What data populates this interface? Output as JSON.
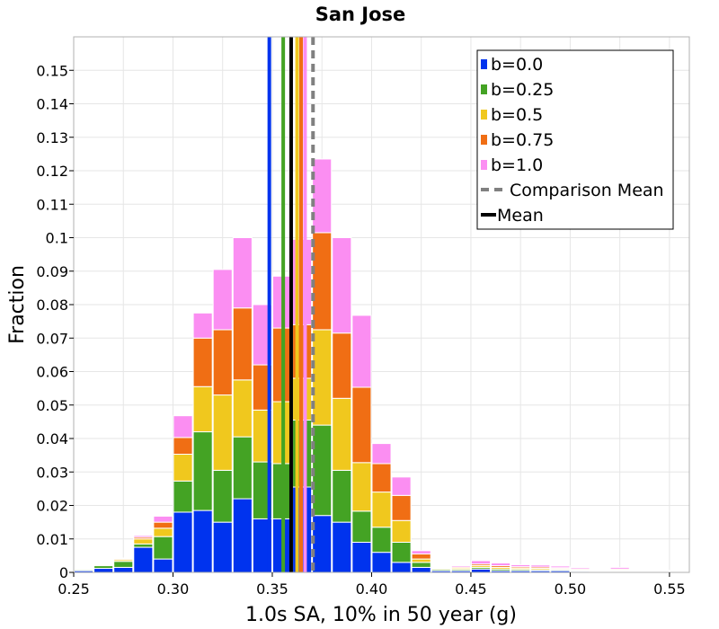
{
  "chart_data": {
    "type": "bar",
    "stacked": true,
    "title": "San Jose",
    "xlabel": "1.0s SA, 10% in 50 year (g)",
    "ylabel": "Fraction",
    "xlim": [
      0.25,
      0.56
    ],
    "ylim": [
      0,
      0.16
    ],
    "bin_width": 0.01,
    "grid": true,
    "legend_position": "top-right",
    "x_ticks": [
      "0.25",
      "0.30",
      "0.35",
      "0.40",
      "0.45",
      "0.50",
      "0.55"
    ],
    "x_tick_values": [
      0.25,
      0.3,
      0.35,
      0.4,
      0.45,
      0.5,
      0.55
    ],
    "y_ticks": [
      "0",
      "0.01",
      "0.02",
      "0.03",
      "0.04",
      "0.05",
      "0.06",
      "0.07",
      "0.08",
      "0.09",
      "0.1",
      "0.11",
      "0.12",
      "0.13",
      "0.14",
      "0.15"
    ],
    "y_tick_values": [
      0,
      0.01,
      0.02,
      0.03,
      0.04,
      0.05,
      0.06,
      0.07,
      0.08,
      0.09,
      0.1,
      0.11,
      0.12,
      0.13,
      0.14,
      0.15
    ],
    "bin_starts": [
      0.25,
      0.26,
      0.27,
      0.28,
      0.29,
      0.3,
      0.31,
      0.32,
      0.33,
      0.34,
      0.35,
      0.36,
      0.37,
      0.38,
      0.39,
      0.4,
      0.41,
      0.42,
      0.43,
      0.44,
      0.45,
      0.46,
      0.47,
      0.48,
      0.49,
      0.5,
      0.51,
      0.52,
      0.53,
      0.54,
      0.55
    ],
    "series": [
      {
        "name": "b=0.0",
        "color": "#0033ee",
        "values": [
          0.0005,
          0.0012,
          0.0015,
          0.0075,
          0.004,
          0.018,
          0.0185,
          0.015,
          0.022,
          0.016,
          0.016,
          0.0255,
          0.017,
          0.015,
          0.009,
          0.006,
          0.003,
          0.0015,
          0.0005,
          0.0005,
          0.001,
          0.0005,
          0.0005,
          0.0005,
          0.0005,
          0.0003,
          0.0002,
          0.0002,
          0.0001,
          0.0001,
          0.0001
        ]
      },
      {
        "name": "b=0.25",
        "color": "#44a324",
        "values": [
          0.0003,
          0.0008,
          0.0018,
          0.001,
          0.0067,
          0.0093,
          0.0235,
          0.0155,
          0.0185,
          0.017,
          0.0165,
          0.02,
          0.027,
          0.0155,
          0.0093,
          0.0075,
          0.006,
          0.0015,
          0.0004,
          0.0004,
          0.0005,
          0.0005,
          0.0004,
          0.0003,
          0.0003,
          0.0002,
          0.0002,
          0.0002,
          0.0001,
          0.0001,
          0.0001
        ]
      },
      {
        "name": "b=0.5",
        "color": "#f0c81e",
        "values": [
          0.0001,
          0.0003,
          0.0005,
          0.0015,
          0.0025,
          0.008,
          0.0135,
          0.0225,
          0.017,
          0.0155,
          0.0185,
          0.0125,
          0.0285,
          0.0215,
          0.0145,
          0.0105,
          0.0065,
          0.001,
          0.0003,
          0.0004,
          0.0005,
          0.0005,
          0.0004,
          0.0004,
          0.0003,
          0.0002,
          0.0002,
          0.0003,
          0.0002,
          0.0002,
          0.0001
        ]
      },
      {
        "name": "b=0.75",
        "color": "#f06e14",
        "values": [
          0.0001,
          0.0001,
          0.0003,
          0.0005,
          0.0018,
          0.005,
          0.0145,
          0.0195,
          0.0215,
          0.0135,
          0.022,
          0.016,
          0.029,
          0.0195,
          0.0225,
          0.0085,
          0.0075,
          0.0015,
          0.0001,
          0.0003,
          0.0005,
          0.0005,
          0.0004,
          0.0004,
          0.0003,
          0.0003,
          0.0002,
          0.0003,
          0.0002,
          0.0001,
          0.0001
        ]
      },
      {
        "name": "b=1.0",
        "color": "#fb8ef2",
        "values": [
          0.0,
          0.0001,
          0.0002,
          0.0005,
          0.0018,
          0.0065,
          0.0075,
          0.018,
          0.021,
          0.018,
          0.0155,
          0.0255,
          0.022,
          0.0285,
          0.0215,
          0.006,
          0.0055,
          0.001,
          0.0002,
          0.0004,
          0.001,
          0.0008,
          0.0006,
          0.0006,
          0.0005,
          0.0004,
          0.0002,
          0.0005,
          0.0002,
          0.0001,
          0.0001
        ]
      }
    ],
    "mean_lines": [
      {
        "name": "b=0.0",
        "x": 0.3485,
        "color": "#0033ee"
      },
      {
        "name": "b=0.25",
        "x": 0.3555,
        "color": "#44a324"
      },
      {
        "name": "b=0.5",
        "x": 0.3625,
        "color": "#f0c81e"
      },
      {
        "name": "b=0.75",
        "x": 0.3645,
        "color": "#f06e14"
      },
      {
        "name": "b=1.0",
        "x": 0.3665,
        "color": "#fb8ef2"
      },
      {
        "name": "Mean",
        "x": 0.3595,
        "color": "#000000"
      },
      {
        "name": "Comparison Mean",
        "x": 0.3705,
        "color": "#808080",
        "dashed": true
      }
    ],
    "legend": [
      {
        "label": "b=0.0",
        "color": "#0033ee",
        "style": "box"
      },
      {
        "label": "b=0.25",
        "color": "#44a324",
        "style": "box"
      },
      {
        "label": "b=0.5",
        "color": "#f0c81e",
        "style": "box"
      },
      {
        "label": "b=0.75",
        "color": "#f06e14",
        "style": "box"
      },
      {
        "label": "b=1.0",
        "color": "#fb8ef2",
        "style": "box"
      },
      {
        "label": "Comparison Mean",
        "color": "#808080",
        "style": "dashed"
      },
      {
        "label": "Mean",
        "color": "#000000",
        "style": "line"
      }
    ]
  }
}
